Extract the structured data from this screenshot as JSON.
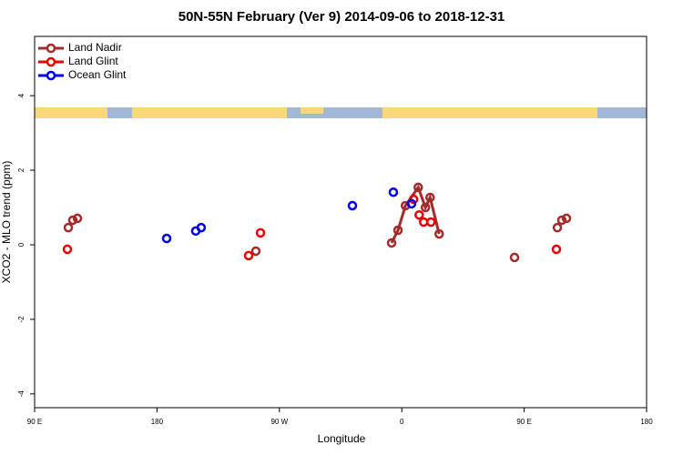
{
  "chart_data": {
    "type": "line",
    "title": "50N-55N February (Ver 9)   2014-09-06 to 2018-12-31",
    "x_label": "Longitude",
    "y_label": "XCO2 - MLO trend (ppm)",
    "xlim": [
      -270,
      180
    ],
    "xticks": [
      {
        "value": -270,
        "label": "90 E"
      },
      {
        "value": -180,
        "label": "180"
      },
      {
        "value": -90,
        "label": "90 W"
      },
      0,
      {
        "value": 90,
        "label": "90 E"
      },
      180
    ],
    "ylim": [
      -4.37,
      5.59
    ],
    "yticks": [
      -4,
      -2,
      0,
      2,
      4
    ],
    "legend": "top-left",
    "series": [
      {
        "name": "Land Nadir",
        "color": "#a52a2a",
        "line": true,
        "x": [
          -245.2,
          null,
          -241.9,
          null,
          -238.5,
          null,
          -107.3,
          null,
          -7.5,
          -2.8,
          2.7,
          12.1,
          17.4,
          20.8,
          27.5,
          null,
          82.9,
          null,
          114.4,
          null,
          117.7,
          null,
          121.1
        ],
        "values": [
          0.46,
          null,
          0.66,
          null,
          0.71,
          null,
          -0.17,
          null,
          0.05,
          0.39,
          1.05,
          1.54,
          1.0,
          1.27,
          0.29,
          null,
          -0.34,
          null,
          0.46,
          null,
          0.66,
          null,
          0.71
        ]
      },
      {
        "name": "Land Glint",
        "color": "#ee0000",
        "line": false,
        "x": [
          -245.9,
          -112.6,
          -103.9,
          8.7,
          12.8,
          16.1,
          21.4,
          113.7
        ],
        "values": [
          -0.12,
          -0.29,
          0.32,
          1.22,
          0.8,
          0.61,
          0.61,
          -0.12
        ]
      },
      {
        "name": "Ocean Glint",
        "color": "#0000ee",
        "line": false,
        "x": [
          -172.9,
          -151.5,
          -147.5,
          -36.3,
          -6.2,
          7.2
        ],
        "values": [
          0.17,
          0.37,
          0.46,
          1.05,
          1.41,
          1.1
        ]
      }
    ]
  }
}
